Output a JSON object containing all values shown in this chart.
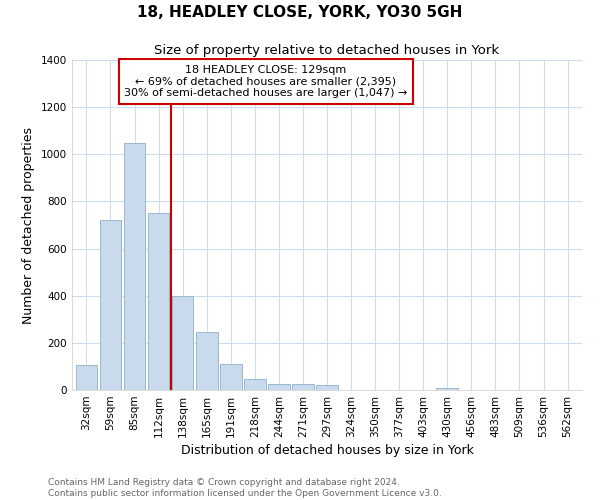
{
  "title": "18, HEADLEY CLOSE, YORK, YO30 5GH",
  "subtitle": "Size of property relative to detached houses in York",
  "xlabel": "Distribution of detached houses by size in York",
  "ylabel": "Number of detached properties",
  "categories": [
    "32sqm",
    "59sqm",
    "85sqm",
    "112sqm",
    "138sqm",
    "165sqm",
    "191sqm",
    "218sqm",
    "244sqm",
    "271sqm",
    "297sqm",
    "324sqm",
    "350sqm",
    "377sqm",
    "403sqm",
    "430sqm",
    "456sqm",
    "483sqm",
    "509sqm",
    "536sqm",
    "562sqm"
  ],
  "values": [
    107,
    720,
    1050,
    750,
    400,
    245,
    110,
    47,
    27,
    25,
    22,
    0,
    0,
    0,
    0,
    10,
    0,
    0,
    0,
    0,
    0
  ],
  "bar_color": "#c8daec",
  "bar_edge_color": "#9ab8d0",
  "vline_x_index": 3.5,
  "vline_color": "#cc0000",
  "annotation_title": "18 HEADLEY CLOSE: 129sqm",
  "annotation_line1": "← 69% of detached houses are smaller (2,395)",
  "annotation_line2": "30% of semi-detached houses are larger (1,047) →",
  "annotation_box_color": "#ffffff",
  "annotation_box_edge": "#cc0000",
  "ylim": [
    0,
    1400
  ],
  "yticks": [
    0,
    200,
    400,
    600,
    800,
    1000,
    1200,
    1400
  ],
  "footer_line1": "Contains HM Land Registry data © Crown copyright and database right 2024.",
  "footer_line2": "Contains public sector information licensed under the Open Government Licence v3.0.",
  "background_color": "#ffffff",
  "grid_color": "#ccdded",
  "title_fontsize": 11,
  "subtitle_fontsize": 9.5,
  "axis_label_fontsize": 9,
  "tick_fontsize": 7.5,
  "footer_fontsize": 6.5
}
